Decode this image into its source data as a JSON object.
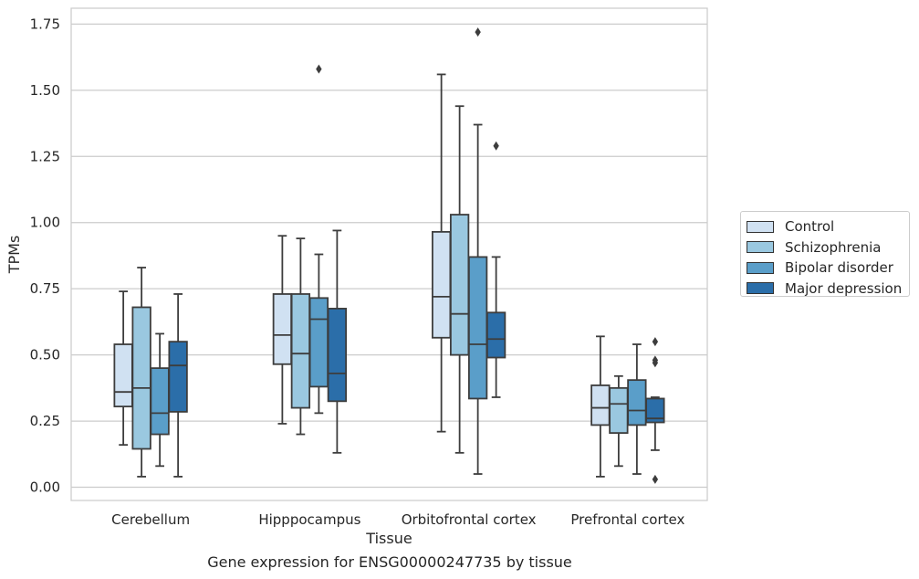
{
  "chart_data": {
    "type": "boxplot",
    "title": "",
    "caption": "Gene expression for ENSG00000247735 by tissue",
    "xlabel": "Tissue",
    "ylabel": "TPMs",
    "ylim": [
      -0.05,
      1.81
    ],
    "yticks": [
      0.0,
      0.25,
      0.5,
      0.75,
      1.0,
      1.25,
      1.5,
      1.75
    ],
    "ytick_labels": [
      "0.00",
      "0.25",
      "0.50",
      "0.75",
      "1.00",
      "1.25",
      "1.50",
      "1.75"
    ],
    "grid": "horizontal",
    "legend_position": "right",
    "categories": [
      "Cerebellum",
      "Hipppocampus",
      "Orbitofrontal cortex",
      "Prefrontal cortex"
    ],
    "series": [
      {
        "name": "Control",
        "color": "#d0e1f2",
        "boxes": [
          {
            "whislo": 0.16,
            "q1": 0.305,
            "med": 0.36,
            "q3": 0.54,
            "whishi": 0.74,
            "fliers": []
          },
          {
            "whislo": 0.24,
            "q1": 0.465,
            "med": 0.575,
            "q3": 0.73,
            "whishi": 0.95,
            "fliers": []
          },
          {
            "whislo": 0.21,
            "q1": 0.565,
            "med": 0.72,
            "q3": 0.965,
            "whishi": 1.56,
            "fliers": []
          },
          {
            "whislo": 0.04,
            "q1": 0.235,
            "med": 0.3,
            "q3": 0.385,
            "whishi": 0.57,
            "fliers": []
          }
        ]
      },
      {
        "name": "Schizophrenia",
        "color": "#9ac8e0",
        "boxes": [
          {
            "whislo": 0.04,
            "q1": 0.145,
            "med": 0.375,
            "q3": 0.68,
            "whishi": 0.83,
            "fliers": []
          },
          {
            "whislo": 0.2,
            "q1": 0.3,
            "med": 0.505,
            "q3": 0.73,
            "whishi": 0.94,
            "fliers": []
          },
          {
            "whislo": 0.13,
            "q1": 0.5,
            "med": 0.655,
            "q3": 1.03,
            "whishi": 1.44,
            "fliers": []
          },
          {
            "whislo": 0.08,
            "q1": 0.205,
            "med": 0.315,
            "q3": 0.375,
            "whishi": 0.42,
            "fliers": []
          }
        ]
      },
      {
        "name": "Bipolar disorder",
        "color": "#5a9ec9",
        "boxes": [
          {
            "whislo": 0.08,
            "q1": 0.2,
            "med": 0.28,
            "q3": 0.45,
            "whishi": 0.58,
            "fliers": []
          },
          {
            "whislo": 0.28,
            "q1": 0.38,
            "med": 0.635,
            "q3": 0.715,
            "whishi": 0.88,
            "fliers": [
              1.58
            ]
          },
          {
            "whislo": 0.05,
            "q1": 0.335,
            "med": 0.54,
            "q3": 0.87,
            "whishi": 1.37,
            "fliers": [
              1.72
            ]
          },
          {
            "whislo": 0.05,
            "q1": 0.235,
            "med": 0.29,
            "q3": 0.405,
            "whishi": 0.54,
            "fliers": []
          }
        ]
      },
      {
        "name": "Major depression",
        "color": "#2b6ea9",
        "boxes": [
          {
            "whislo": 0.04,
            "q1": 0.285,
            "med": 0.46,
            "q3": 0.55,
            "whishi": 0.73,
            "fliers": []
          },
          {
            "whislo": 0.13,
            "q1": 0.325,
            "med": 0.43,
            "q3": 0.675,
            "whishi": 0.97,
            "fliers": []
          },
          {
            "whislo": 0.34,
            "q1": 0.49,
            "med": 0.56,
            "q3": 0.66,
            "whishi": 0.87,
            "fliers": [
              1.29
            ]
          },
          {
            "whislo": 0.14,
            "q1": 0.245,
            "med": 0.26,
            "q3": 0.335,
            "whishi": 0.34,
            "fliers": [
              0.03,
              0.47,
              0.48,
              0.55
            ]
          }
        ]
      }
    ]
  }
}
